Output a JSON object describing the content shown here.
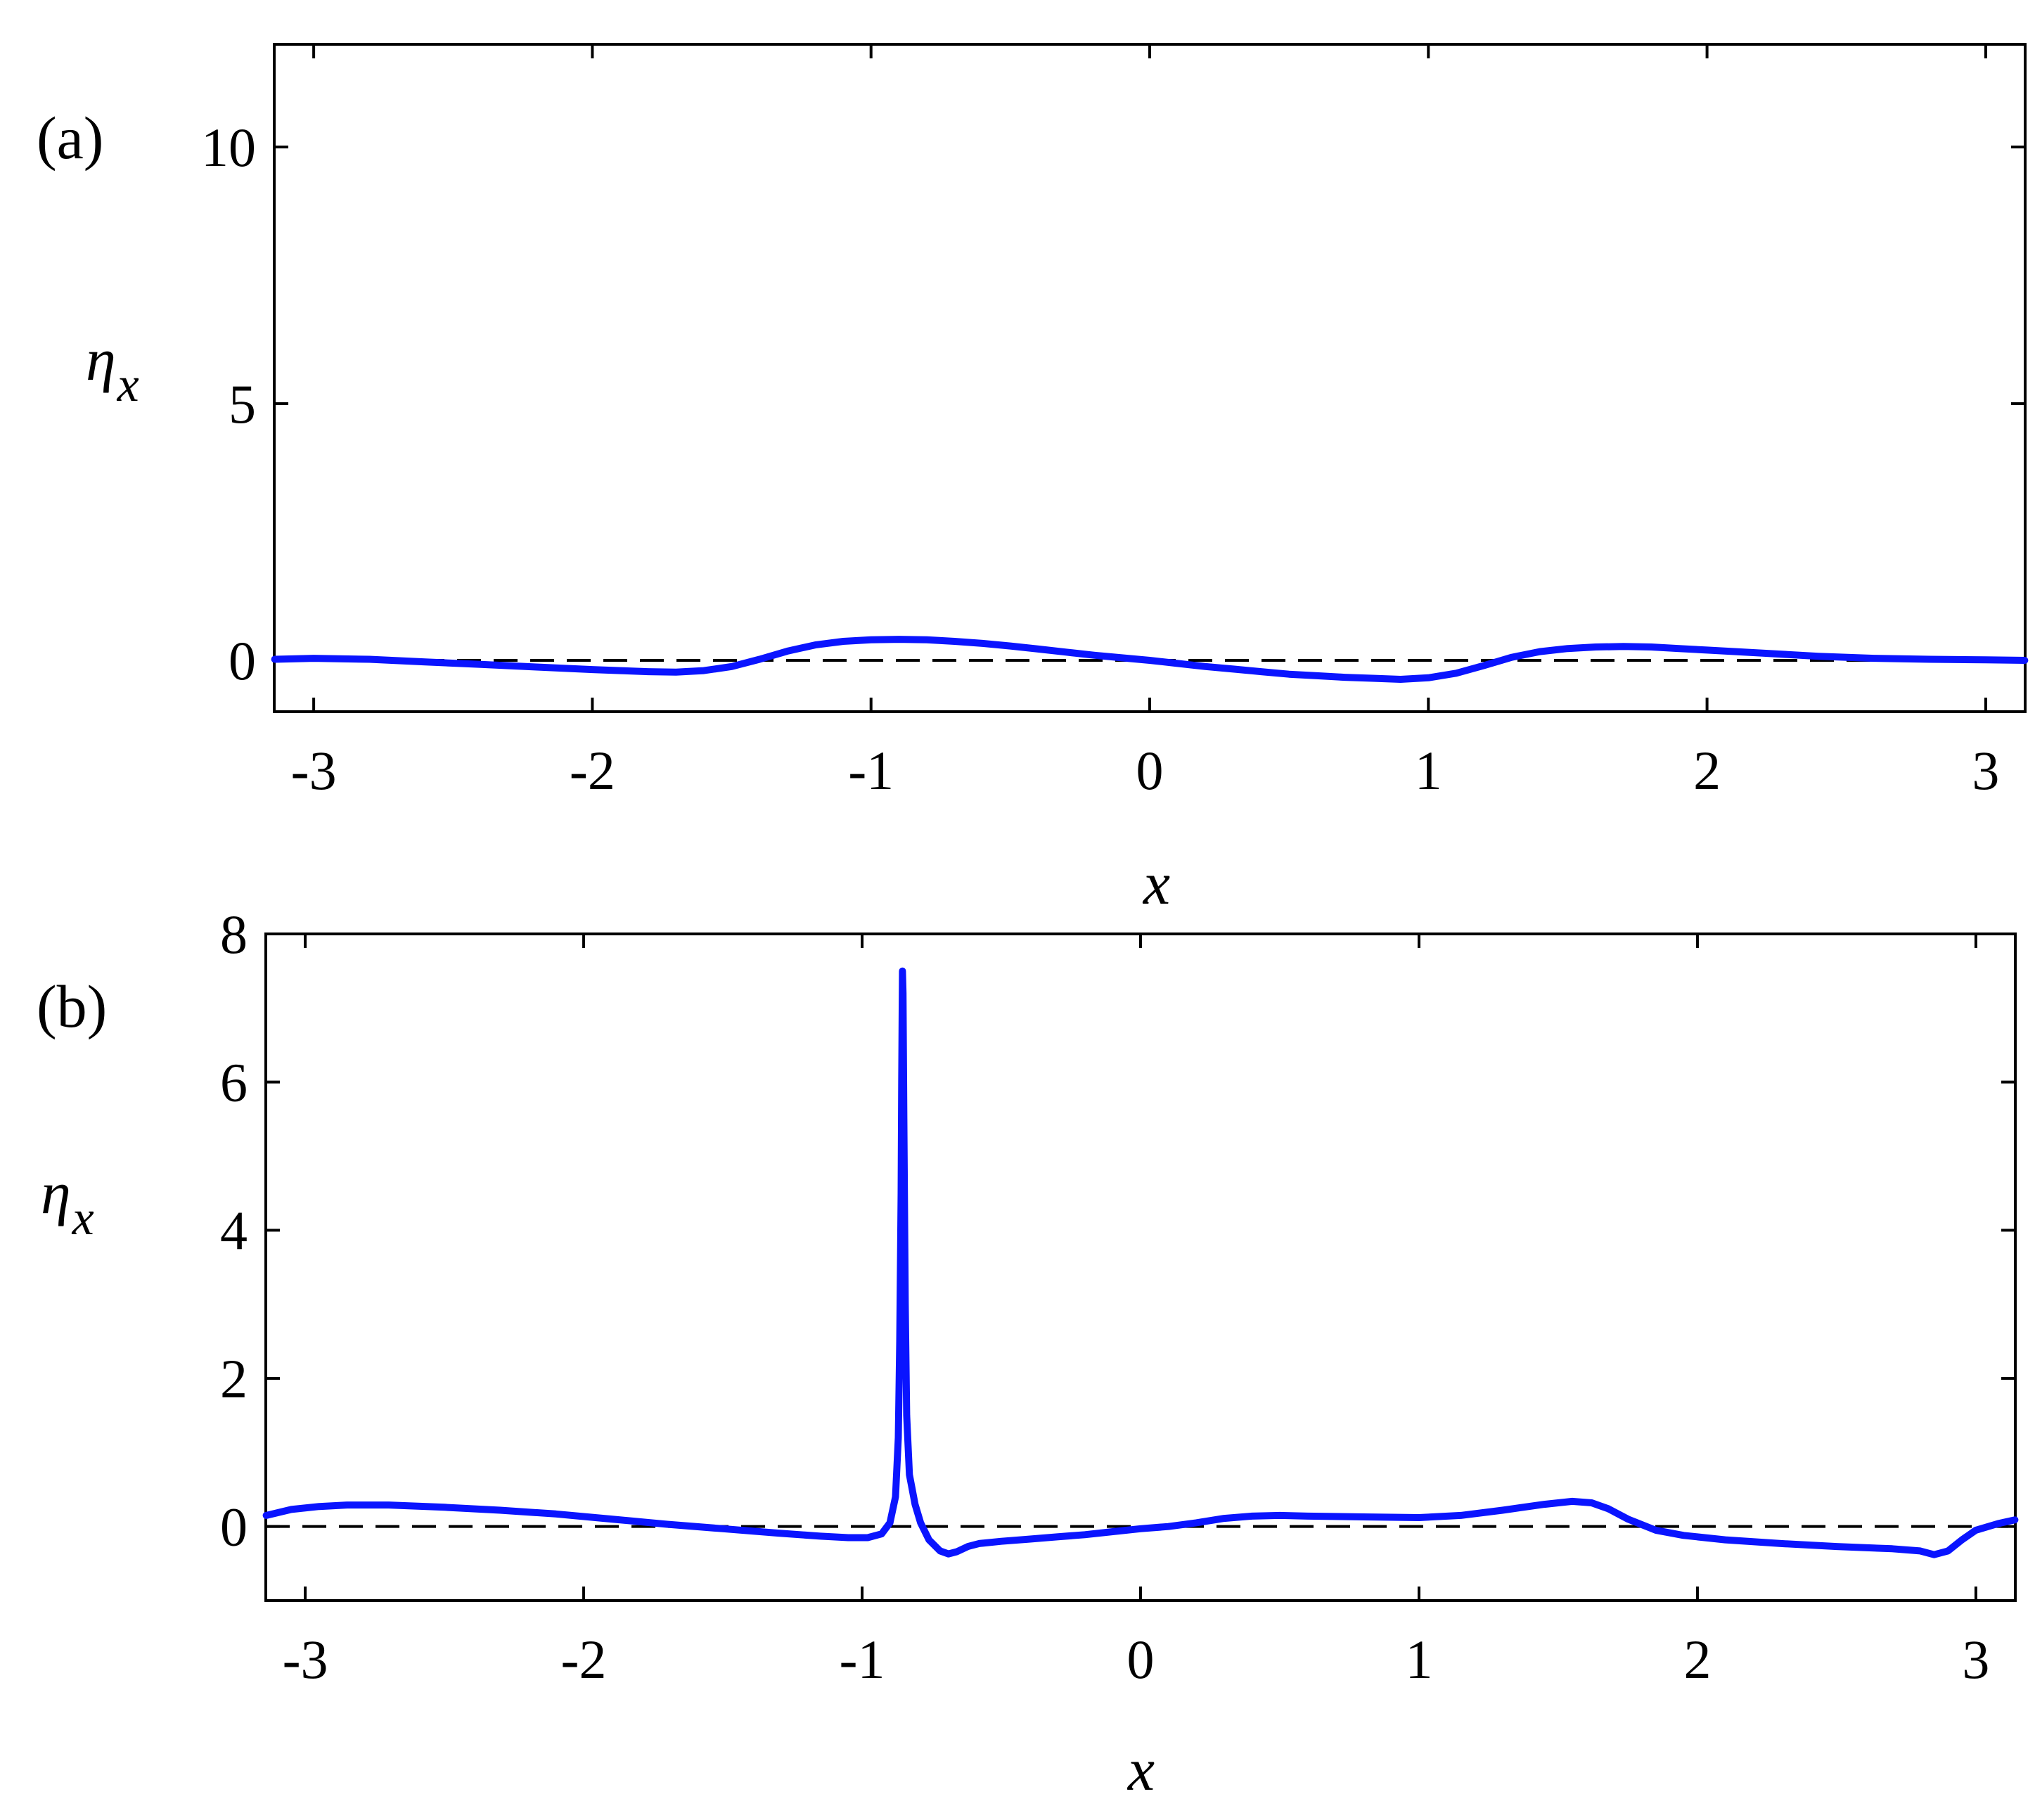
{
  "chart_data": [
    {
      "type": "line",
      "panel_label": "(a)",
      "xlabel": "x",
      "ylabel": {
        "symbol": "η",
        "subscript": "x"
      },
      "xlim": [
        -3.14159,
        3.14159
      ],
      "ylim": [
        -1,
        12
      ],
      "xticks": [
        -3,
        -2,
        -1,
        0,
        1,
        2,
        3
      ],
      "xtick_labels": [
        "-3",
        "-2",
        "-1",
        "0",
        "1",
        "2",
        "3"
      ],
      "yticks": [
        0,
        5,
        10
      ],
      "ytick_labels": [
        "0",
        "5",
        "10"
      ],
      "grid": false,
      "colors": {
        "curve": "#0a14ff",
        "reference": "#000000"
      },
      "reference_line": {
        "y": 0,
        "style": "dashed"
      },
      "series": [
        {
          "x": [
            -3.14,
            -3.0,
            -2.8,
            -2.6,
            -2.4,
            -2.2,
            -2.0,
            -1.9,
            -1.8,
            -1.7,
            -1.6,
            -1.5,
            -1.4,
            -1.3,
            -1.2,
            -1.1,
            -1.0,
            -0.9,
            -0.8,
            -0.7,
            -0.6,
            -0.5,
            -0.4,
            -0.3,
            -0.2,
            -0.1,
            0.0,
            0.1,
            0.2,
            0.3,
            0.4,
            0.5,
            0.6,
            0.7,
            0.8,
            0.9,
            1.0,
            1.1,
            1.2,
            1.3,
            1.4,
            1.5,
            1.6,
            1.7,
            1.8,
            1.9,
            2.0,
            2.2,
            2.4,
            2.6,
            2.8,
            3.0,
            3.14
          ],
          "y": [
            0.02,
            0.04,
            0.02,
            -0.03,
            -0.08,
            -0.13,
            -0.18,
            -0.2,
            -0.22,
            -0.23,
            -0.2,
            -0.12,
            0.02,
            0.18,
            0.3,
            0.37,
            0.4,
            0.41,
            0.4,
            0.37,
            0.33,
            0.28,
            0.22,
            0.16,
            0.1,
            0.05,
            0.0,
            -0.06,
            -0.12,
            -0.17,
            -0.22,
            -0.27,
            -0.3,
            -0.33,
            -0.35,
            -0.37,
            -0.34,
            -0.25,
            -0.1,
            0.06,
            0.17,
            0.23,
            0.26,
            0.27,
            0.26,
            0.23,
            0.2,
            0.14,
            0.08,
            0.04,
            0.02,
            0.01,
            0.0
          ]
        }
      ]
    },
    {
      "type": "line",
      "panel_label": "(b)",
      "xlabel": "x",
      "ylabel": {
        "symbol": "η",
        "subscript": "x"
      },
      "xlim": [
        -3.14159,
        3.14159
      ],
      "ylim": [
        -1,
        8
      ],
      "xticks": [
        -3,
        -2,
        -1,
        0,
        1,
        2,
        3
      ],
      "xtick_labels": [
        "-3",
        "-2",
        "-1",
        "0",
        "1",
        "2",
        "3"
      ],
      "yticks": [
        0,
        2,
        4,
        6,
        8
      ],
      "ytick_labels": [
        "0",
        "2",
        "4",
        "6",
        "8"
      ],
      "grid": false,
      "colors": {
        "curve": "#0a14ff",
        "reference": "#000000"
      },
      "reference_line": {
        "y": 0,
        "style": "dashed"
      },
      "series": [
        {
          "x": [
            -3.14,
            -3.05,
            -2.95,
            -2.85,
            -2.7,
            -2.5,
            -2.3,
            -2.1,
            -1.9,
            -1.7,
            -1.5,
            -1.3,
            -1.15,
            -1.05,
            -0.98,
            -0.93,
            -0.9,
            -0.88,
            -0.87,
            -0.865,
            -0.86,
            -0.858,
            -0.856,
            -0.855,
            -0.853,
            -0.85,
            -0.845,
            -0.84,
            -0.83,
            -0.81,
            -0.79,
            -0.76,
            -0.72,
            -0.69,
            -0.66,
            -0.62,
            -0.58,
            -0.5,
            -0.4,
            -0.3,
            -0.2,
            -0.1,
            0.0,
            0.1,
            0.2,
            0.3,
            0.4,
            0.5,
            0.6,
            0.8,
            1.0,
            1.15,
            1.3,
            1.45,
            1.55,
            1.62,
            1.68,
            1.75,
            1.85,
            1.95,
            2.1,
            2.3,
            2.5,
            2.7,
            2.8,
            2.85,
            2.9,
            2.95,
            3.0,
            3.08,
            3.14
          ],
          "y": [
            0.15,
            0.23,
            0.27,
            0.29,
            0.29,
            0.26,
            0.22,
            0.17,
            0.1,
            0.03,
            -0.03,
            -0.09,
            -0.13,
            -0.15,
            -0.15,
            -0.1,
            0.05,
            0.4,
            1.2,
            2.5,
            4.5,
            6.0,
            7.0,
            7.5,
            7.2,
            5.5,
            3.0,
            1.5,
            0.7,
            0.3,
            0.05,
            -0.18,
            -0.33,
            -0.37,
            -0.34,
            -0.27,
            -0.23,
            -0.2,
            -0.17,
            -0.14,
            -0.11,
            -0.07,
            -0.03,
            0.0,
            0.05,
            0.11,
            0.14,
            0.15,
            0.14,
            0.13,
            0.12,
            0.15,
            0.22,
            0.3,
            0.34,
            0.32,
            0.24,
            0.1,
            -0.05,
            -0.12,
            -0.18,
            -0.23,
            -0.27,
            -0.3,
            -0.33,
            -0.38,
            -0.33,
            -0.18,
            -0.05,
            0.04,
            0.09
          ]
        }
      ]
    }
  ]
}
